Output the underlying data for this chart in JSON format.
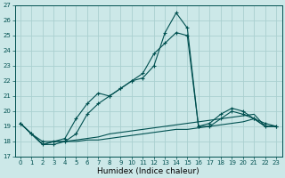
{
  "xlabel": "Humidex (Indice chaleur)",
  "xlim": [
    -0.5,
    23.5
  ],
  "ylim": [
    17,
    27
  ],
  "yticks": [
    17,
    18,
    19,
    20,
    21,
    22,
    23,
    24,
    25,
    26,
    27
  ],
  "xtick_labels": [
    "0",
    "1",
    "2",
    "3",
    "4",
    "5",
    "6",
    "7",
    "8",
    "9",
    "10",
    "11",
    "12",
    "13",
    "14",
    "15",
    "16",
    "17",
    "18",
    "19",
    "20",
    "21",
    "22",
    "23"
  ],
  "bg_color": "#cce8e8",
  "line_color": "#005050",
  "grid_color": "#aad0d0",
  "series_marked": [
    [
      19.2,
      18.5,
      18.0,
      18.0,
      18.2,
      19.5,
      20.5,
      21.2,
      21.0,
      21.5,
      22.0,
      22.5,
      23.8,
      24.5,
      25.2,
      25.0,
      19.0,
      19.2,
      19.8,
      20.2,
      20.0,
      19.5,
      19.2,
      19.0
    ],
    [
      19.2,
      18.5,
      17.8,
      17.8,
      18.0,
      18.5,
      19.8,
      20.5,
      21.0,
      21.5,
      22.0,
      22.2,
      23.0,
      25.2,
      26.5,
      25.5,
      19.0,
      19.0,
      19.5,
      20.0,
      19.8,
      19.5,
      19.0,
      19.0
    ]
  ],
  "series_plain": [
    [
      19.2,
      18.5,
      17.8,
      18.0,
      18.0,
      18.1,
      18.2,
      18.3,
      18.5,
      18.6,
      18.7,
      18.8,
      18.9,
      19.0,
      19.1,
      19.2,
      19.3,
      19.4,
      19.5,
      19.6,
      19.7,
      19.8,
      19.0,
      19.0
    ],
    [
      19.2,
      18.5,
      17.8,
      18.0,
      18.0,
      18.0,
      18.1,
      18.1,
      18.2,
      18.3,
      18.4,
      18.5,
      18.6,
      18.7,
      18.8,
      18.8,
      18.9,
      19.0,
      19.1,
      19.2,
      19.3,
      19.5,
      19.0,
      19.0
    ]
  ],
  "xlabel_fontsize": 6.5,
  "tick_fontsize": 5.0,
  "linewidth": 0.8,
  "marker_size": 3.5,
  "marker_lw": 0.8
}
